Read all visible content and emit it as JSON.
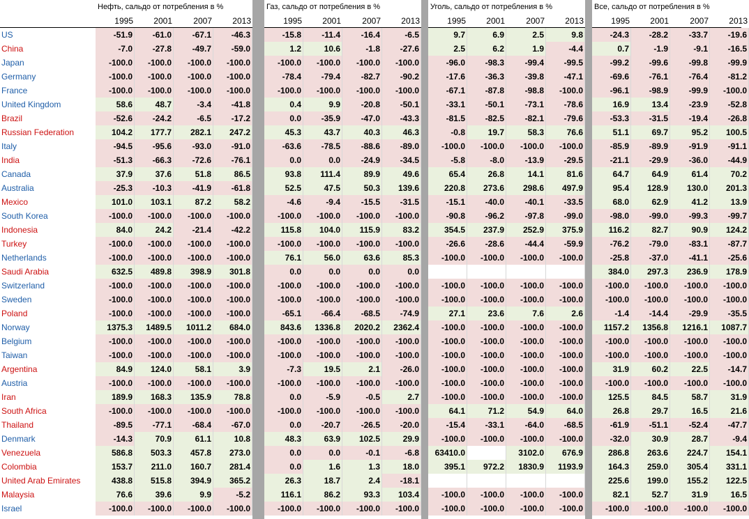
{
  "groups": [
    {
      "title": "Нефть, сальдо от потребления в %"
    },
    {
      "title": "Газ, сальдо от потребления в %"
    },
    {
      "title": "Уголь, сальдо от потребления в %"
    },
    {
      "title": "Все, сальдо от потребления в %"
    }
  ],
  "years": [
    "1995",
    "2001",
    "2007",
    "2013"
  ],
  "colors": {
    "positive": "#eaf1de",
    "negative": "#f2dcdb",
    "country_blue": "#1f5ea8",
    "country_red": "#cc1111",
    "gap": "#a6a6a6"
  },
  "rows": [
    {
      "country": "US",
      "c": "blue",
      "v": [
        "-51.9",
        "-61.0",
        "-67.1",
        "-46.3",
        "-15.8",
        "-11.4",
        "-16.4",
        "-6.5",
        "9.7",
        "6.9",
        "2.5",
        "9.8",
        "-24.3",
        "-28.2",
        "-33.7",
        "-19.6"
      ]
    },
    {
      "country": "China",
      "c": "red",
      "v": [
        "-7.0",
        "-27.8",
        "-49.7",
        "-59.0",
        "1.2",
        "10.6",
        "-1.8",
        "-27.6",
        "2.5",
        "6.2",
        "1.9",
        "-4.4",
        "0.7",
        "-1.9",
        "-9.1",
        "-16.5"
      ]
    },
    {
      "country": "Japan",
      "c": "blue",
      "v": [
        "-100.0",
        "-100.0",
        "-100.0",
        "-100.0",
        "-100.0",
        "-100.0",
        "-100.0",
        "-100.0",
        "-96.0",
        "-98.3",
        "-99.4",
        "-99.5",
        "-99.2",
        "-99.6",
        "-99.8",
        "-99.9"
      ]
    },
    {
      "country": "Germany",
      "c": "blue",
      "v": [
        "-100.0",
        "-100.0",
        "-100.0",
        "-100.0",
        "-78.4",
        "-79.4",
        "-82.7",
        "-90.2",
        "-17.6",
        "-36.3",
        "-39.8",
        "-47.1",
        "-69.6",
        "-76.1",
        "-76.4",
        "-81.2"
      ]
    },
    {
      "country": "France",
      "c": "blue",
      "v": [
        "-100.0",
        "-100.0",
        "-100.0",
        "-100.0",
        "-100.0",
        "-100.0",
        "-100.0",
        "-100.0",
        "-67.1",
        "-87.8",
        "-98.8",
        "-100.0",
        "-96.1",
        "-98.9",
        "-99.9",
        "-100.0"
      ]
    },
    {
      "country": "United Kingdom",
      "c": "blue",
      "v": [
        "58.6",
        "48.7",
        "-3.4",
        "-41.8",
        "0.4",
        "9.9",
        "-20.8",
        "-50.1",
        "-33.1",
        "-50.1",
        "-73.1",
        "-78.6",
        "16.9",
        "13.4",
        "-23.9",
        "-52.8"
      ]
    },
    {
      "country": "Brazil",
      "c": "red",
      "v": [
        "-52.6",
        "-24.2",
        "-6.5",
        "-17.2",
        "0.0",
        "-35.9",
        "-47.0",
        "-43.3",
        "-81.5",
        "-82.5",
        "-82.1",
        "-79.6",
        "-53.3",
        "-31.5",
        "-19.4",
        "-26.8"
      ]
    },
    {
      "country": "Russian Federation",
      "c": "red",
      "v": [
        "104.2",
        "177.7",
        "282.1",
        "247.2",
        "45.3",
        "43.7",
        "40.3",
        "46.3",
        "-0.8",
        "19.7",
        "58.3",
        "76.6",
        "51.1",
        "69.7",
        "95.2",
        "100.5"
      ]
    },
    {
      "country": "Italy",
      "c": "blue",
      "v": [
        "-94.5",
        "-95.6",
        "-93.0",
        "-91.0",
        "-63.6",
        "-78.5",
        "-88.6",
        "-89.0",
        "-100.0",
        "-100.0",
        "-100.0",
        "-100.0",
        "-85.9",
        "-89.9",
        "-91.9",
        "-91.1"
      ]
    },
    {
      "country": "India",
      "c": "red",
      "v": [
        "-51.3",
        "-66.3",
        "-72.6",
        "-76.1",
        "0.0",
        "0.0",
        "-24.9",
        "-34.5",
        "-5.8",
        "-8.0",
        "-13.9",
        "-29.5",
        "-21.1",
        "-29.9",
        "-36.0",
        "-44.9"
      ]
    },
    {
      "country": "Canada",
      "c": "blue",
      "v": [
        "37.9",
        "37.6",
        "51.8",
        "86.5",
        "93.8",
        "111.4",
        "89.9",
        "49.6",
        "65.4",
        "26.8",
        "14.1",
        "81.6",
        "64.7",
        "64.9",
        "61.4",
        "70.2"
      ]
    },
    {
      "country": "Australia",
      "c": "blue",
      "v": [
        "-25.3",
        "-10.3",
        "-41.9",
        "-61.8",
        "52.5",
        "47.5",
        "50.3",
        "139.6",
        "220.8",
        "273.6",
        "298.6",
        "497.9",
        "95.4",
        "128.9",
        "130.0",
        "201.3"
      ]
    },
    {
      "country": "Mexico",
      "c": "red",
      "v": [
        "101.0",
        "103.1",
        "87.2",
        "58.2",
        "-4.6",
        "-9.4",
        "-15.5",
        "-31.5",
        "-15.1",
        "-40.0",
        "-40.1",
        "-33.5",
        "68.0",
        "62.9",
        "41.2",
        "13.9"
      ]
    },
    {
      "country": "South Korea",
      "c": "blue",
      "v": [
        "-100.0",
        "-100.0",
        "-100.0",
        "-100.0",
        "-100.0",
        "-100.0",
        "-100.0",
        "-100.0",
        "-90.8",
        "-96.2",
        "-97.8",
        "-99.0",
        "-98.0",
        "-99.0",
        "-99.3",
        "-99.7"
      ]
    },
    {
      "country": "Indonesia",
      "c": "red",
      "v": [
        "84.0",
        "24.2",
        "-21.4",
        "-42.2",
        "115.8",
        "104.0",
        "115.9",
        "83.2",
        "354.5",
        "237.9",
        "252.9",
        "375.9",
        "116.2",
        "82.7",
        "90.9",
        "124.2"
      ]
    },
    {
      "country": "Turkey",
      "c": "red",
      "v": [
        "-100.0",
        "-100.0",
        "-100.0",
        "-100.0",
        "-100.0",
        "-100.0",
        "-100.0",
        "-100.0",
        "-26.6",
        "-28.6",
        "-44.4",
        "-59.9",
        "-76.2",
        "-79.0",
        "-83.1",
        "-87.7"
      ]
    },
    {
      "country": "Netherlands",
      "c": "blue",
      "v": [
        "-100.0",
        "-100.0",
        "-100.0",
        "-100.0",
        "76.1",
        "56.0",
        "63.6",
        "85.3",
        "-100.0",
        "-100.0",
        "-100.0",
        "-100.0",
        "-25.8",
        "-37.0",
        "-41.1",
        "-25.6"
      ]
    },
    {
      "country": "Saudi Arabia",
      "c": "red",
      "v": [
        "632.5",
        "489.8",
        "398.9",
        "301.8",
        "0.0",
        "0.0",
        "0.0",
        "0.0",
        "",
        "",
        "",
        "",
        "384.0",
        "297.3",
        "236.9",
        "178.9"
      ]
    },
    {
      "country": "Switzerland",
      "c": "blue",
      "v": [
        "-100.0",
        "-100.0",
        "-100.0",
        "-100.0",
        "-100.0",
        "-100.0",
        "-100.0",
        "-100.0",
        "-100.0",
        "-100.0",
        "-100.0",
        "-100.0",
        "-100.0",
        "-100.0",
        "-100.0",
        "-100.0"
      ]
    },
    {
      "country": "Sweden",
      "c": "blue",
      "v": [
        "-100.0",
        "-100.0",
        "-100.0",
        "-100.0",
        "-100.0",
        "-100.0",
        "-100.0",
        "-100.0",
        "-100.0",
        "-100.0",
        "-100.0",
        "-100.0",
        "-100.0",
        "-100.0",
        "-100.0",
        "-100.0"
      ]
    },
    {
      "country": "Poland",
      "c": "red",
      "v": [
        "-100.0",
        "-100.0",
        "-100.0",
        "-100.0",
        "-65.1",
        "-66.4",
        "-68.5",
        "-74.9",
        "27.1",
        "23.6",
        "7.6",
        "2.6",
        "-1.4",
        "-14.4",
        "-29.9",
        "-35.5"
      ]
    },
    {
      "country": "Norway",
      "c": "blue",
      "v": [
        "1375.3",
        "1489.5",
        "1011.2",
        "684.0",
        "843.6",
        "1336.8",
        "2020.2",
        "2362.4",
        "-100.0",
        "-100.0",
        "-100.0",
        "-100.0",
        "1157.2",
        "1356.8",
        "1216.1",
        "1087.7"
      ]
    },
    {
      "country": "Belgium",
      "c": "blue",
      "v": [
        "-100.0",
        "-100.0",
        "-100.0",
        "-100.0",
        "-100.0",
        "-100.0",
        "-100.0",
        "-100.0",
        "-100.0",
        "-100.0",
        "-100.0",
        "-100.0",
        "-100.0",
        "-100.0",
        "-100.0",
        "-100.0"
      ]
    },
    {
      "country": "Taiwan",
      "c": "blue",
      "v": [
        "-100.0",
        "-100.0",
        "-100.0",
        "-100.0",
        "-100.0",
        "-100.0",
        "-100.0",
        "-100.0",
        "-100.0",
        "-100.0",
        "-100.0",
        "-100.0",
        "-100.0",
        "-100.0",
        "-100.0",
        "-100.0"
      ]
    },
    {
      "country": "Argentina",
      "c": "red",
      "v": [
        "84.9",
        "124.0",
        "58.1",
        "3.9",
        "-7.3",
        "19.5",
        "2.1",
        "-26.0",
        "-100.0",
        "-100.0",
        "-100.0",
        "-100.0",
        "31.9",
        "60.2",
        "22.5",
        "-14.7"
      ]
    },
    {
      "country": "Austria",
      "c": "blue",
      "v": [
        "-100.0",
        "-100.0",
        "-100.0",
        "-100.0",
        "-100.0",
        "-100.0",
        "-100.0",
        "-100.0",
        "-100.0",
        "-100.0",
        "-100.0",
        "-100.0",
        "-100.0",
        "-100.0",
        "-100.0",
        "-100.0"
      ]
    },
    {
      "country": "Iran",
      "c": "red",
      "v": [
        "189.9",
        "168.3",
        "135.9",
        "78.8",
        "0.0",
        "-5.9",
        "-0.5",
        "2.7",
        "-100.0",
        "-100.0",
        "-100.0",
        "-100.0",
        "125.5",
        "84.5",
        "58.7",
        "31.9"
      ]
    },
    {
      "country": "South Africa",
      "c": "red",
      "v": [
        "-100.0",
        "-100.0",
        "-100.0",
        "-100.0",
        "-100.0",
        "-100.0",
        "-100.0",
        "-100.0",
        "64.1",
        "71.2",
        "54.9",
        "64.0",
        "26.8",
        "29.7",
        "16.5",
        "21.6"
      ]
    },
    {
      "country": "Thailand",
      "c": "red",
      "v": [
        "-89.5",
        "-77.1",
        "-68.4",
        "-67.0",
        "0.0",
        "-20.7",
        "-26.5",
        "-20.0",
        "-15.4",
        "-33.1",
        "-64.0",
        "-68.5",
        "-61.9",
        "-51.1",
        "-52.4",
        "-47.7"
      ]
    },
    {
      "country": "Denmark",
      "c": "blue",
      "v": [
        "-14.3",
        "70.9",
        "61.1",
        "10.8",
        "48.3",
        "63.9",
        "102.5",
        "29.9",
        "-100.0",
        "-100.0",
        "-100.0",
        "-100.0",
        "-32.0",
        "30.9",
        "28.7",
        "-9.4"
      ]
    },
    {
      "country": "Venezuela",
      "c": "red",
      "v": [
        "586.8",
        "503.3",
        "457.8",
        "273.0",
        "0.0",
        "0.0",
        "-0.1",
        "-6.8",
        "63410.0",
        "",
        "3102.0",
        "676.9",
        "286.8",
        "263.6",
        "224.7",
        "154.1"
      ]
    },
    {
      "country": "Colombia",
      "c": "red",
      "v": [
        "153.7",
        "211.0",
        "160.7",
        "281.4",
        "0.0",
        "1.6",
        "1.3",
        "18.0",
        "395.1",
        "972.2",
        "1830.9",
        "1193.9",
        "164.3",
        "259.0",
        "305.4",
        "331.1"
      ]
    },
    {
      "country": "United Arab Emirates",
      "c": "red",
      "v": [
        "438.8",
        "515.8",
        "394.9",
        "365.2",
        "26.3",
        "18.7",
        "2.4",
        "-18.1",
        "",
        "",
        "",
        "",
        "225.6",
        "199.0",
        "155.2",
        "122.5"
      ]
    },
    {
      "country": "Malaysia",
      "c": "red",
      "v": [
        "76.6",
        "39.6",
        "9.9",
        "-5.2",
        "116.1",
        "86.2",
        "93.3",
        "103.4",
        "-100.0",
        "-100.0",
        "-100.0",
        "-100.0",
        "82.1",
        "52.7",
        "31.9",
        "16.5"
      ]
    },
    {
      "country": "Israel",
      "c": "blue",
      "v": [
        "-100.0",
        "-100.0",
        "-100.0",
        "-100.0",
        "-100.0",
        "-100.0",
        "-100.0",
        "-100.0",
        "-100.0",
        "-100.0",
        "-100.0",
        "-100.0",
        "-100.0",
        "-100.0",
        "-100.0",
        "-100.0"
      ]
    }
  ]
}
